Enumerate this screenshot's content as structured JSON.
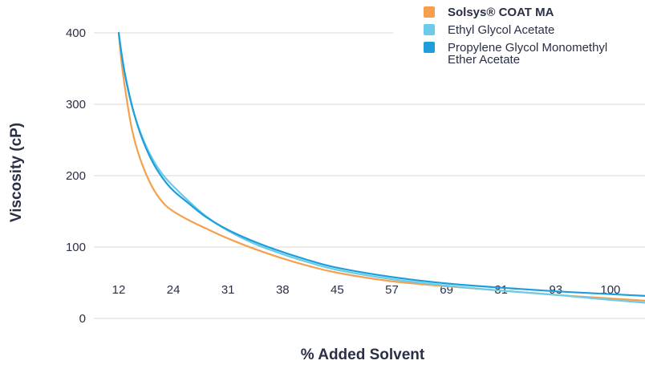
{
  "chart_data": {
    "type": "line",
    "title": "",
    "xlabel": "% Added Solvent",
    "ylabel": "Viscosity (cP)",
    "x_categories": [
      "12",
      "24",
      "31",
      "38",
      "45",
      "57",
      "69",
      "81",
      "93",
      "100"
    ],
    "ylim": [
      0,
      400
    ],
    "yticks": [
      "0",
      "100",
      "200",
      "300",
      "400"
    ],
    "grid": "horizontal",
    "legend_position": "top-right",
    "series": [
      {
        "name": "Solsys® COAT MA",
        "color": "#f6a04d",
        "bold": true,
        "x": [
          0,
          0.05,
          0.12,
          0.25,
          0.4,
          0.6,
          0.8,
          1,
          1.3,
          1.6,
          2,
          2.5,
          3,
          3.5,
          4,
          5,
          6,
          7,
          8,
          9,
          9.8
        ],
        "values": [
          400,
          360,
          320,
          262,
          222,
          186,
          163,
          150,
          137,
          126,
          112,
          97,
          84,
          73,
          64,
          52,
          45,
          39,
          33,
          28,
          24
        ]
      },
      {
        "name": "Ethyl Glycol Acetate",
        "color": "#6ccbe8",
        "bold": false,
        "x": [
          0,
          0.05,
          0.12,
          0.25,
          0.4,
          0.6,
          0.8,
          1,
          1.3,
          1.6,
          2,
          2.5,
          3,
          3.5,
          4,
          5,
          6,
          7,
          8,
          9,
          9.8
        ],
        "values": [
          400,
          370,
          338,
          295,
          260,
          226,
          202,
          185,
          163,
          143,
          123,
          104,
          90,
          78,
          68,
          55,
          46,
          39,
          33,
          26,
          21
        ]
      },
      {
        "name": "Propylene Glycol Monomethyl Ether Acetate",
        "color": "#1e9fdb",
        "bold": false,
        "x": [
          0,
          0.05,
          0.12,
          0.25,
          0.4,
          0.6,
          0.8,
          1,
          1.3,
          1.6,
          2,
          2.5,
          3,
          3.5,
          4,
          5,
          6,
          7,
          8,
          9,
          9.8
        ],
        "values": [
          400,
          372,
          340,
          296,
          258,
          222,
          197,
          179,
          160,
          142,
          124,
          107,
          93,
          81,
          71,
          58,
          49,
          43,
          38,
          34,
          31
        ]
      }
    ]
  }
}
